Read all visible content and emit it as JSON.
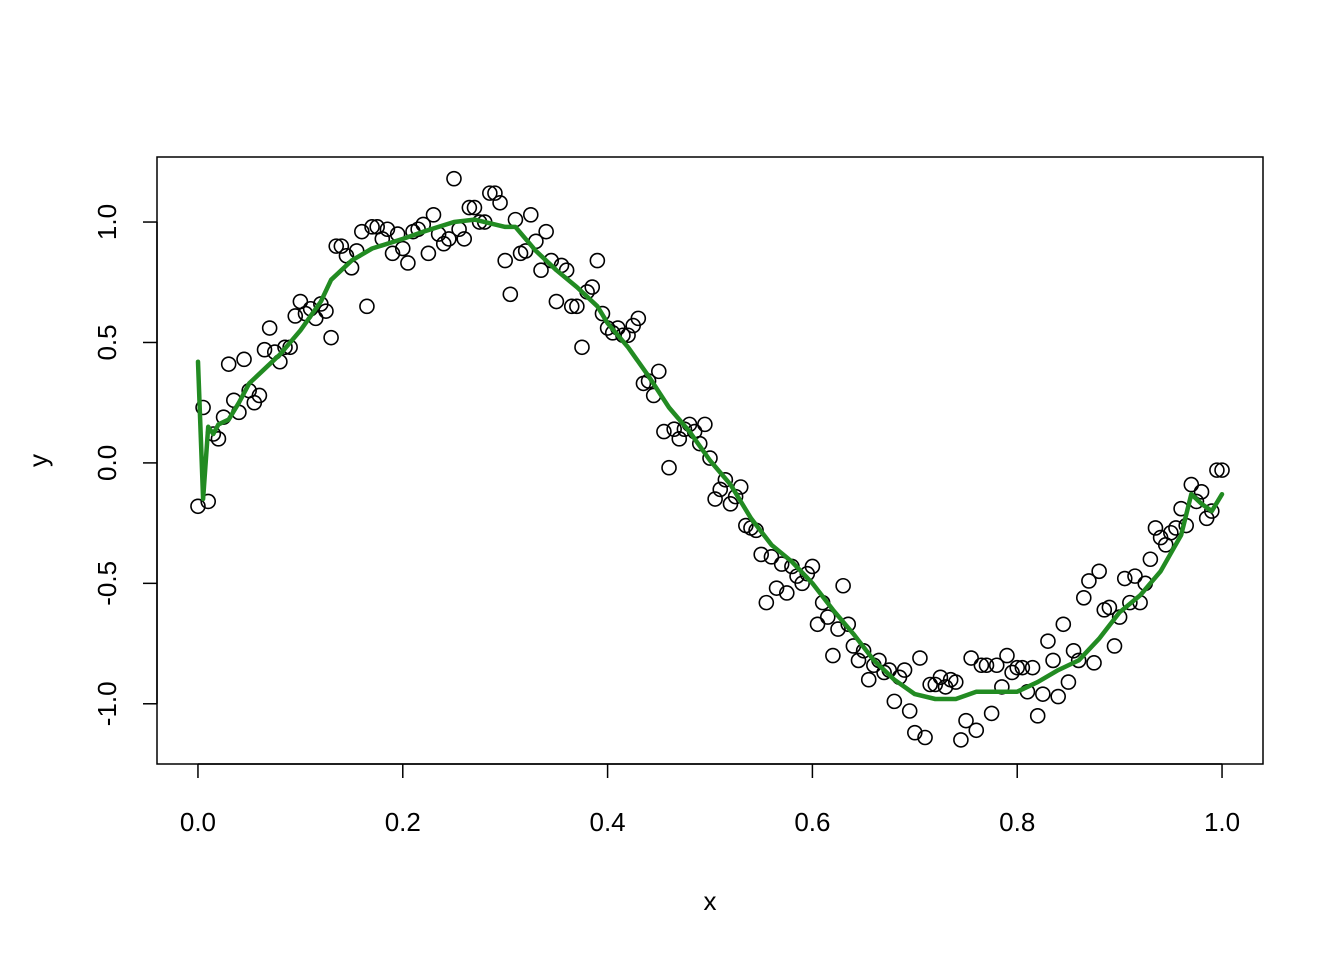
{
  "chart_data": {
    "type": "scatter",
    "title": "",
    "xlabel": "x",
    "ylabel": "y",
    "xlim": [
      -0.04,
      1.04
    ],
    "ylim": [
      -1.25,
      1.27
    ],
    "x_ticks": [
      {
        "value": 0.0,
        "label": "0.0"
      },
      {
        "value": 0.2,
        "label": "0.2"
      },
      {
        "value": 0.4,
        "label": "0.4"
      },
      {
        "value": 0.6,
        "label": "0.6"
      },
      {
        "value": 0.8,
        "label": "0.8"
      },
      {
        "value": 1.0,
        "label": "1.0"
      }
    ],
    "y_ticks": [
      {
        "value": -1.0,
        "label": "-1.0"
      },
      {
        "value": -0.5,
        "label": "-0.5"
      },
      {
        "value": 0.0,
        "label": "0.0"
      },
      {
        "value": 0.5,
        "label": "0.5"
      },
      {
        "value": 1.0,
        "label": "1.0"
      }
    ],
    "grid": false,
    "legend": "none",
    "point_color": "#000000",
    "line_color": "#228B22",
    "series": [
      {
        "kind": "points",
        "x": [
          0.0,
          0.005,
          0.01,
          0.015,
          0.02,
          0.025,
          0.03,
          0.035,
          0.04,
          0.045,
          0.05,
          0.055,
          0.06,
          0.065,
          0.07,
          0.075,
          0.08,
          0.085,
          0.09,
          0.095,
          0.1,
          0.105,
          0.11,
          0.115,
          0.12,
          0.125,
          0.13,
          0.135,
          0.14,
          0.145,
          0.15,
          0.155,
          0.16,
          0.165,
          0.17,
          0.175,
          0.18,
          0.185,
          0.19,
          0.195,
          0.2,
          0.205,
          0.21,
          0.215,
          0.22,
          0.225,
          0.23,
          0.235,
          0.24,
          0.245,
          0.25,
          0.255,
          0.26,
          0.265,
          0.27,
          0.275,
          0.28,
          0.285,
          0.29,
          0.295,
          0.3,
          0.305,
          0.31,
          0.315,
          0.32,
          0.325,
          0.33,
          0.335,
          0.34,
          0.345,
          0.35,
          0.355,
          0.36,
          0.365,
          0.37,
          0.375,
          0.38,
          0.385,
          0.39,
          0.395,
          0.4,
          0.405,
          0.41,
          0.415,
          0.42,
          0.425,
          0.43,
          0.435,
          0.44,
          0.445,
          0.45,
          0.455,
          0.46,
          0.465,
          0.47,
          0.475,
          0.48,
          0.485,
          0.49,
          0.495,
          0.5,
          0.505,
          0.51,
          0.515,
          0.52,
          0.525,
          0.53,
          0.535,
          0.54,
          0.545,
          0.55,
          0.555,
          0.56,
          0.565,
          0.57,
          0.575,
          0.58,
          0.585,
          0.59,
          0.595,
          0.6,
          0.605,
          0.61,
          0.615,
          0.62,
          0.625,
          0.63,
          0.635,
          0.64,
          0.645,
          0.65,
          0.655,
          0.66,
          0.665,
          0.67,
          0.675,
          0.68,
          0.685,
          0.69,
          0.695,
          0.7,
          0.705,
          0.71,
          0.715,
          0.72,
          0.725,
          0.73,
          0.735,
          0.74,
          0.745,
          0.75,
          0.755,
          0.76,
          0.765,
          0.77,
          0.775,
          0.78,
          0.785,
          0.79,
          0.795,
          0.8,
          0.805,
          0.81,
          0.815,
          0.82,
          0.825,
          0.83,
          0.835,
          0.84,
          0.845,
          0.85,
          0.855,
          0.86,
          0.865,
          0.87,
          0.875,
          0.88,
          0.885,
          0.89,
          0.895,
          0.9,
          0.905,
          0.91,
          0.915,
          0.92,
          0.925,
          0.93,
          0.935,
          0.94,
          0.945,
          0.95,
          0.955,
          0.96,
          0.965,
          0.97,
          0.975,
          0.98,
          0.985,
          0.99,
          0.995,
          1.0
        ],
        "y": [
          -0.18,
          0.23,
          -0.16,
          0.12,
          0.1,
          0.19,
          0.41,
          0.26,
          0.21,
          0.43,
          0.3,
          0.25,
          0.28,
          0.47,
          0.56,
          0.46,
          0.42,
          0.48,
          0.48,
          0.61,
          0.67,
          0.62,
          0.64,
          0.6,
          0.66,
          0.63,
          0.52,
          0.9,
          0.9,
          0.86,
          0.81,
          0.88,
          0.96,
          0.65,
          0.98,
          0.98,
          0.93,
          0.97,
          0.87,
          0.95,
          0.89,
          0.83,
          0.96,
          0.97,
          0.99,
          0.87,
          1.03,
          0.95,
          0.91,
          0.93,
          1.18,
          0.97,
          0.93,
          1.06,
          1.06,
          1.0,
          1.0,
          1.12,
          1.12,
          1.08,
          0.84,
          0.7,
          1.01,
          0.87,
          0.88,
          1.03,
          0.92,
          0.8,
          0.96,
          0.84,
          0.67,
          0.82,
          0.8,
          0.65,
          0.65,
          0.48,
          0.71,
          0.73,
          0.84,
          0.62,
          0.56,
          0.54,
          0.56,
          0.53,
          0.53,
          0.57,
          0.6,
          0.33,
          0.34,
          0.28,
          0.38,
          0.13,
          -0.02,
          0.14,
          0.1,
          0.14,
          0.16,
          0.13,
          0.08,
          0.16,
          0.02,
          -0.15,
          -0.11,
          -0.07,
          -0.17,
          -0.14,
          -0.1,
          -0.26,
          -0.27,
          -0.28,
          -0.38,
          -0.58,
          -0.39,
          -0.52,
          -0.42,
          -0.54,
          -0.43,
          -0.47,
          -0.5,
          -0.46,
          -0.43,
          -0.67,
          -0.58,
          -0.64,
          -0.8,
          -0.69,
          -0.51,
          -0.67,
          -0.76,
          -0.82,
          -0.78,
          -0.9,
          -0.84,
          -0.82,
          -0.87,
          -0.86,
          -0.99,
          -0.89,
          -0.86,
          -1.03,
          -1.12,
          -0.81,
          -1.14,
          -0.92,
          -0.92,
          -0.89,
          -0.93,
          -0.9,
          -0.91,
          -1.15,
          -1.07,
          -0.81,
          -1.11,
          -0.84,
          -0.84,
          -1.04,
          -0.84,
          -0.93,
          -0.8,
          -0.87,
          -0.85,
          -0.85,
          -0.95,
          -0.85,
          -1.05,
          -0.96,
          -0.74,
          -0.82,
          -0.97,
          -0.67,
          -0.91,
          -0.78,
          -0.82,
          -0.56,
          -0.49,
          -0.83,
          -0.45,
          -0.61,
          -0.6,
          -0.76,
          -0.64,
          -0.48,
          -0.58,
          -0.47,
          -0.58,
          -0.5,
          -0.4,
          -0.27,
          -0.31,
          -0.34,
          -0.29,
          -0.27,
          -0.19,
          -0.26,
          -0.09,
          -0.16,
          -0.12,
          -0.23,
          -0.2,
          -0.03,
          -0.03
        ]
      },
      {
        "kind": "line",
        "x": [
          0.0,
          0.005,
          0.01,
          0.015,
          0.02,
          0.03,
          0.04,
          0.05,
          0.06,
          0.07,
          0.08,
          0.1,
          0.12,
          0.13,
          0.15,
          0.17,
          0.2,
          0.22,
          0.25,
          0.27,
          0.3,
          0.31,
          0.33,
          0.35,
          0.37,
          0.39,
          0.4,
          0.42,
          0.44,
          0.46,
          0.48,
          0.5,
          0.52,
          0.54,
          0.56,
          0.58,
          0.6,
          0.62,
          0.64,
          0.66,
          0.68,
          0.7,
          0.72,
          0.74,
          0.76,
          0.78,
          0.8,
          0.82,
          0.84,
          0.86,
          0.88,
          0.9,
          0.92,
          0.94,
          0.96,
          0.97,
          0.98,
          0.99,
          1.0
        ],
        "y": [
          0.42,
          -0.15,
          0.15,
          0.12,
          0.16,
          0.18,
          0.25,
          0.33,
          0.37,
          0.41,
          0.45,
          0.55,
          0.67,
          0.76,
          0.84,
          0.89,
          0.93,
          0.96,
          1.0,
          1.01,
          0.98,
          0.98,
          0.88,
          0.8,
          0.73,
          0.65,
          0.58,
          0.48,
          0.36,
          0.23,
          0.13,
          0.01,
          -0.09,
          -0.23,
          -0.34,
          -0.41,
          -0.5,
          -0.61,
          -0.71,
          -0.82,
          -0.9,
          -0.96,
          -0.98,
          -0.98,
          -0.95,
          -0.95,
          -0.95,
          -0.91,
          -0.86,
          -0.82,
          -0.73,
          -0.62,
          -0.55,
          -0.45,
          -0.3,
          -0.13,
          -0.17,
          -0.2,
          -0.13
        ]
      }
    ]
  }
}
